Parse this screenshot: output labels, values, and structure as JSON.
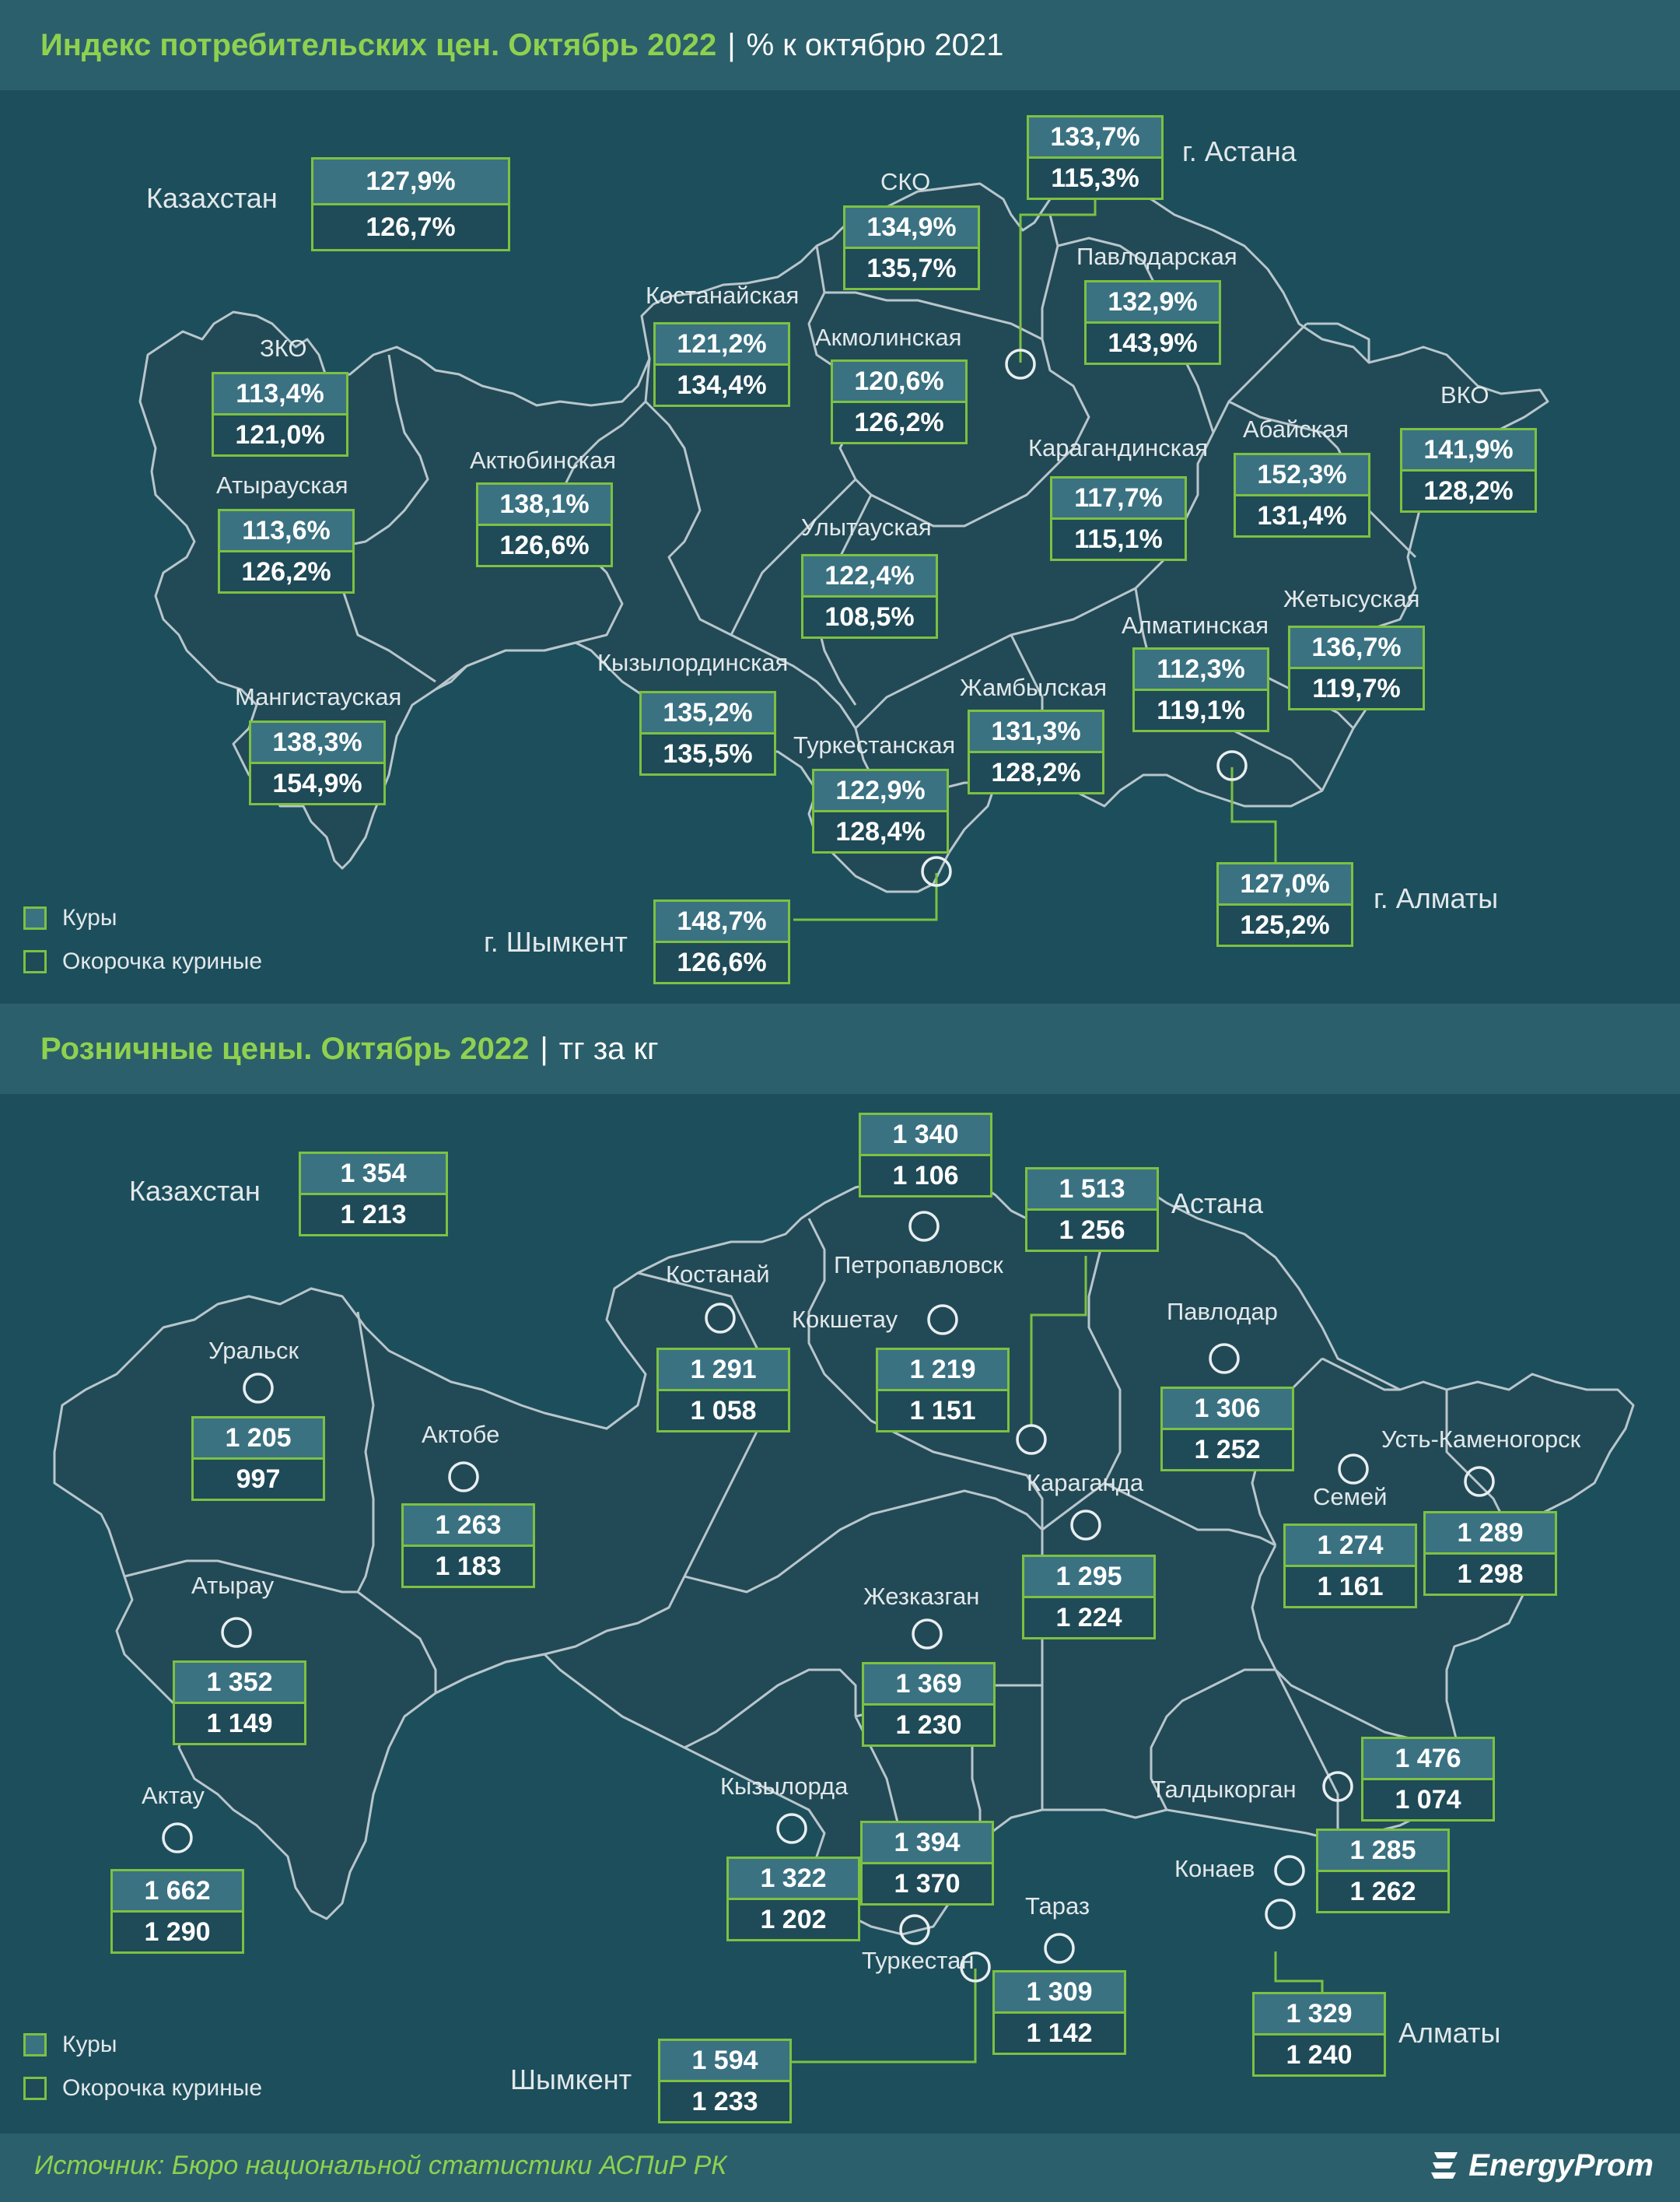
{
  "colors": {
    "background": "#1d4e5c",
    "header_background": "#2b5f6b",
    "title_green": "#8fd14f",
    "box_border": "#7cc142",
    "box_row1": "#3a7282",
    "box_row2": "#1f4a57",
    "region_fill": "#224a56",
    "border_line": "#b8c6cc"
  },
  "panel1": {
    "title": "Индекс потребительских цен. Октябрь 2022",
    "separator": "|",
    "unit": "% к октябрю 2021",
    "national": {
      "label": "Казахстан",
      "v1": "127,9%",
      "v2": "126,7%"
    },
    "regions": [
      {
        "name": "ЗКО",
        "v1": "113,4%",
        "v2": "121,0%"
      },
      {
        "name": "Атырауская",
        "v1": "113,6%",
        "v2": "126,2%"
      },
      {
        "name": "Мангистауская",
        "v1": "138,3%",
        "v2": "154,9%"
      },
      {
        "name": "Актюбинская",
        "v1": "138,1%",
        "v2": "126,6%"
      },
      {
        "name": "Костанайская",
        "v1": "121,2%",
        "v2": "134,4%"
      },
      {
        "name": "СКО",
        "v1": "134,9%",
        "v2": "135,7%"
      },
      {
        "name": "Акмолинская",
        "v1": "120,6%",
        "v2": "126,2%"
      },
      {
        "name": "Павлодарская",
        "v1": "132,9%",
        "v2": "143,9%"
      },
      {
        "name": "Абайская",
        "v1": "152,3%",
        "v2": "131,4%"
      },
      {
        "name": "ВКО",
        "v1": "141,9%",
        "v2": "128,2%"
      },
      {
        "name": "Карагандинская",
        "v1": "117,7%",
        "v2": "115,1%"
      },
      {
        "name": "Улытауская",
        "v1": "122,4%",
        "v2": "108,5%"
      },
      {
        "name": "Кызылординская",
        "v1": "135,2%",
        "v2": "135,5%"
      },
      {
        "name": "Туркестанская",
        "v1": "122,9%",
        "v2": "128,4%"
      },
      {
        "name": "Жамбылская",
        "v1": "131,3%",
        "v2": "128,2%"
      },
      {
        "name": "Алматинская",
        "v1": "112,3%",
        "v2": "119,1%"
      },
      {
        "name": "Жетысуская",
        "v1": "136,7%",
        "v2": "119,7%"
      }
    ],
    "cities": [
      {
        "name": "г. Астана",
        "v1": "133,7%",
        "v2": "115,3%"
      },
      {
        "name": "г. Алматы",
        "v1": "127,0%",
        "v2": "125,2%"
      },
      {
        "name": "г. Шымкент",
        "v1": "148,7%",
        "v2": "126,6%"
      }
    ],
    "legend": [
      "Куры",
      "Окорочка куриные"
    ]
  },
  "panel2": {
    "title": "Розничные цены. Октябрь 2022",
    "separator": "|",
    "unit": "тг за кг",
    "national": {
      "label": "Казахстан",
      "v1": "1 354",
      "v2": "1 213"
    },
    "cities": [
      {
        "name": "Уральск",
        "v1": "1 205",
        "v2": "997"
      },
      {
        "name": "Атырау",
        "v1": "1 352",
        "v2": "1 149"
      },
      {
        "name": "Актау",
        "v1": "1 662",
        "v2": "1 290"
      },
      {
        "name": "Актобе",
        "v1": "1 263",
        "v2": "1 183"
      },
      {
        "name": "Костанай",
        "v1": "1 291",
        "v2": "1 058"
      },
      {
        "name": "Петропавловск",
        "v1": "1 340",
        "v2": "1 106"
      },
      {
        "name": "Кокшетау",
        "v1": "1 219",
        "v2": "1 151"
      },
      {
        "name": "Астана",
        "v1": "1 513",
        "v2": "1 256"
      },
      {
        "name": "Павлодар",
        "v1": "1 306",
        "v2": "1 252"
      },
      {
        "name": "Семей",
        "v1": "1 274",
        "v2": "1 161"
      },
      {
        "name": "Усть-Каменогорск",
        "v1": "1 289",
        "v2": "1 298"
      },
      {
        "name": "Караганда",
        "v1": "1 295",
        "v2": "1 224"
      },
      {
        "name": "Жезказган",
        "v1": "1 369",
        "v2": "1 230"
      },
      {
        "name": "Кызылорда",
        "v1": "1 322",
        "v2": "1 202"
      },
      {
        "name": "Туркестан",
        "v1": "1 394",
        "v2": "1 370"
      },
      {
        "name": "Тараз",
        "v1": "1 309",
        "v2": "1 142"
      },
      {
        "name": "Шымкент",
        "v1": "1 594",
        "v2": "1 233"
      },
      {
        "name": "Талдыкорган",
        "v1": "1 476",
        "v2": "1 074"
      },
      {
        "name": "Конаев",
        "v1": "1 285",
        "v2": "1 262"
      },
      {
        "name": "Алматы",
        "v1": "1 329",
        "v2": "1 240"
      }
    ],
    "legend": [
      "Куры",
      "Окорочка куриные"
    ]
  },
  "footer": {
    "source": "Источник: Бюро национальной статистики АСПиР РК",
    "brand": "EnergyProm",
    "brand_icon": "energyprom-logo-icon"
  }
}
